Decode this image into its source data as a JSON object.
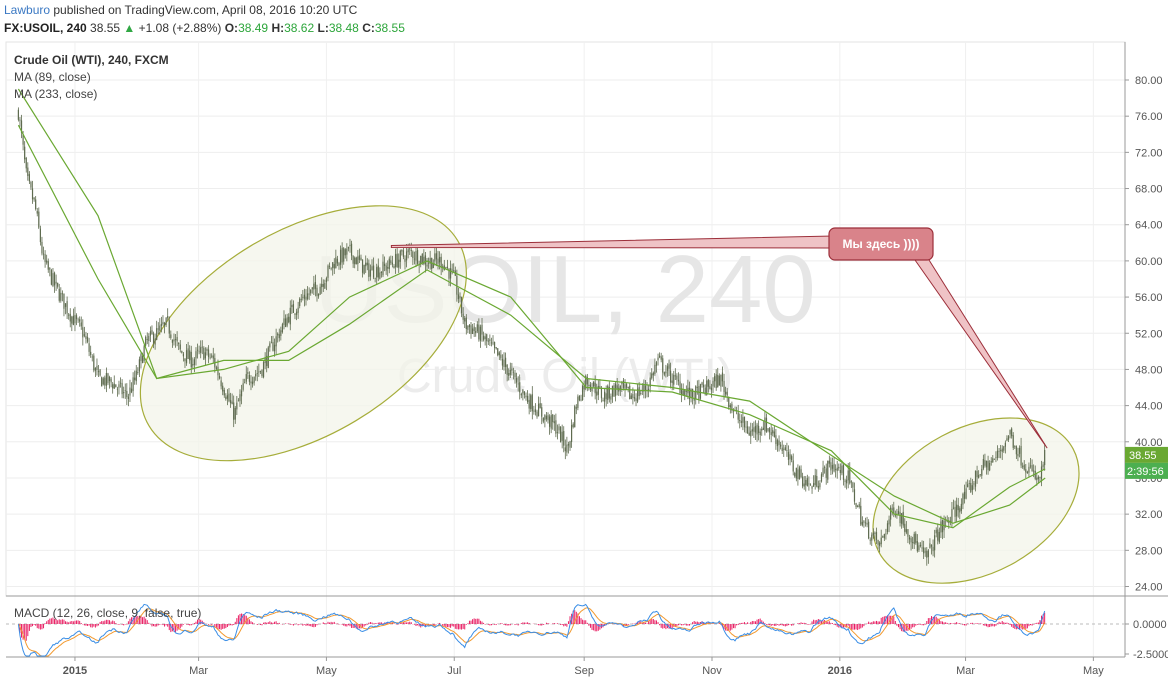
{
  "header": {
    "author": "Lawburo",
    "published": "published on TradingView.com, April 08, 2016 10:20 UTC",
    "symbol": "FX:USOIL, 240",
    "last": "38.55",
    "change_arrow": "▲",
    "change": "+1.08 (+2.88%)",
    "o_label": "O:",
    "o_value": "38.49",
    "h_label": "H:",
    "h_value": "38.62",
    "l_label": "L:",
    "l_value": "38.48",
    "c_label": "C:",
    "c_value": "38.55"
  },
  "legend": {
    "title": "Crude Oil (WTI), 240, FXCM",
    "ma1": "MA (89, close)",
    "ma2": "MA (233, close)",
    "macd": "MACD (12, 26, close, 9, false, true)"
  },
  "watermark": {
    "big": "USOIL, 240",
    "small": "Crude Oil (WTI)"
  },
  "callout": {
    "text": "Мы здесь ))))"
  },
  "price_tag": {
    "price": "38.55",
    "countdown": "2:39:56"
  },
  "colors": {
    "candle": "#5e6b4f",
    "ma": "#6aa832",
    "ellipse_stroke": "#a6ad3a",
    "ellipse_fill": "#f3f4e9",
    "callout_fill": "#d9838a",
    "callout_stroke": "#9c2f3a",
    "callout_band": "#efc3c6",
    "macd_line": "#3a8ee6",
    "signal_line": "#f29a30",
    "histogram": "#e91e63",
    "tag_price": "#6aa832",
    "tag_time": "#4caf50"
  },
  "chart_data": {
    "type": "candlestick",
    "symbol": "FX:USOIL",
    "interval": "240",
    "price_axis": {
      "range": [
        22,
        84
      ],
      "ticks": [
        "80.00",
        "76.00",
        "72.00",
        "68.00",
        "64.00",
        "60.00",
        "56.00",
        "52.00",
        "48.00",
        "44.00",
        "40.00",
        "36.00",
        "32.00",
        "28.00",
        "24.00"
      ]
    },
    "time_axis": [
      "2015",
      "Mar",
      "May",
      "Jul",
      "Sep",
      "Nov",
      "2016",
      "Mar",
      "May"
    ],
    "price_path": [
      [
        "2014-12-05",
        76.5
      ],
      [
        "2014-12-09",
        69
      ],
      [
        "2014-12-13",
        66
      ],
      [
        "2014-12-17",
        60
      ],
      [
        "2014-12-23",
        57
      ],
      [
        "2014-12-30",
        54
      ],
      [
        "2015-01-05",
        52
      ],
      [
        "2015-01-12",
        47
      ],
      [
        "2015-01-19",
        46.5
      ],
      [
        "2015-01-26",
        45
      ],
      [
        "2015-01-30",
        47
      ],
      [
        "2015-02-04",
        51
      ],
      [
        "2015-02-09",
        52
      ],
      [
        "2015-02-14",
        53
      ],
      [
        "2015-02-20",
        50
      ],
      [
        "2015-02-26",
        49
      ],
      [
        "2015-03-03",
        50
      ],
      [
        "2015-03-08",
        49
      ],
      [
        "2015-03-13",
        46
      ],
      [
        "2015-03-18",
        43
      ],
      [
        "2015-03-24",
        47
      ],
      [
        "2015-03-31",
        48
      ],
      [
        "2015-04-06",
        51
      ],
      [
        "2015-04-13",
        54
      ],
      [
        "2015-04-20",
        56
      ],
      [
        "2015-04-27",
        57
      ],
      [
        "2015-05-05",
        60
      ],
      [
        "2015-05-12",
        61
      ],
      [
        "2015-05-20",
        59
      ],
      [
        "2015-05-27",
        59
      ],
      [
        "2015-06-03",
        60
      ],
      [
        "2015-06-10",
        61
      ],
      [
        "2015-06-18",
        60
      ],
      [
        "2015-06-25",
        60
      ],
      [
        "2015-07-01",
        58
      ],
      [
        "2015-07-06",
        53
      ],
      [
        "2015-07-13",
        52
      ],
      [
        "2015-07-20",
        50
      ],
      [
        "2015-07-28",
        47.5
      ],
      [
        "2015-08-04",
        45
      ],
      [
        "2015-08-12",
        43
      ],
      [
        "2015-08-19",
        41.5
      ],
      [
        "2015-08-24",
        39
      ],
      [
        "2015-08-28",
        44
      ],
      [
        "2015-09-02",
        47
      ],
      [
        "2015-09-10",
        45
      ],
      [
        "2015-09-17",
        46
      ],
      [
        "2015-09-24",
        45
      ],
      [
        "2015-10-01",
        46
      ],
      [
        "2015-10-06",
        49
      ],
      [
        "2015-10-13",
        47
      ],
      [
        "2015-10-22",
        45
      ],
      [
        "2015-10-30",
        46
      ],
      [
        "2015-11-05",
        47
      ],
      [
        "2015-11-12",
        43
      ],
      [
        "2015-11-19",
        41
      ],
      [
        "2015-11-26",
        42
      ],
      [
        "2015-12-03",
        40
      ],
      [
        "2015-12-10",
        37
      ],
      [
        "2015-12-18",
        35
      ],
      [
        "2015-12-28",
        37.5
      ],
      [
        "2016-01-05",
        36
      ],
      [
        "2016-01-12",
        31
      ],
      [
        "2016-01-20",
        28.5
      ],
      [
        "2016-01-27",
        33
      ],
      [
        "2016-02-03",
        30
      ],
      [
        "2016-02-11",
        27
      ],
      [
        "2016-02-17",
        30
      ],
      [
        "2016-02-24",
        32
      ],
      [
        "2016-03-01",
        34
      ],
      [
        "2016-03-08",
        37
      ],
      [
        "2016-03-15",
        38
      ],
      [
        "2016-03-22",
        41
      ],
      [
        "2016-03-28",
        38
      ],
      [
        "2016-04-05",
        35.5
      ],
      [
        "2016-04-08",
        38.55
      ]
    ],
    "moving_averages": [
      {
        "name": "MA (89, close)",
        "approx_path": [
          [
            "2014-12-05",
            75
          ],
          [
            "2015-01-12",
            58
          ],
          [
            "2015-02-09",
            47
          ],
          [
            "2015-03-13",
            48
          ],
          [
            "2015-04-13",
            50
          ],
          [
            "2015-05-12",
            56
          ],
          [
            "2015-06-18",
            60
          ],
          [
            "2015-07-28",
            56
          ],
          [
            "2015-09-02",
            46
          ],
          [
            "2015-10-13",
            45.5
          ],
          [
            "2015-11-19",
            43
          ],
          [
            "2015-12-28",
            39
          ],
          [
            "2016-01-27",
            32
          ],
          [
            "2016-02-24",
            30.5
          ],
          [
            "2016-03-22",
            35
          ],
          [
            "2016-04-08",
            37
          ]
        ]
      },
      {
        "name": "MA (233, close)",
        "approx_path": [
          [
            "2014-12-05",
            79
          ],
          [
            "2015-01-12",
            65
          ],
          [
            "2015-02-09",
            47
          ],
          [
            "2015-03-13",
            49
          ],
          [
            "2015-04-13",
            49
          ],
          [
            "2015-05-12",
            53
          ],
          [
            "2015-06-18",
            59
          ],
          [
            "2015-07-28",
            54
          ],
          [
            "2015-09-02",
            47
          ],
          [
            "2015-10-13",
            46
          ],
          [
            "2015-11-19",
            44.5
          ],
          [
            "2015-12-28",
            38.5
          ],
          [
            "2016-01-27",
            34
          ],
          [
            "2016-02-24",
            31
          ],
          [
            "2016-03-22",
            33
          ],
          [
            "2016-04-08",
            36
          ]
        ]
      }
    ],
    "macd": {
      "params": "12, 26, close, 9, false, true",
      "axis_ticks": [
        "0.0000",
        "-2.5000"
      ]
    }
  }
}
